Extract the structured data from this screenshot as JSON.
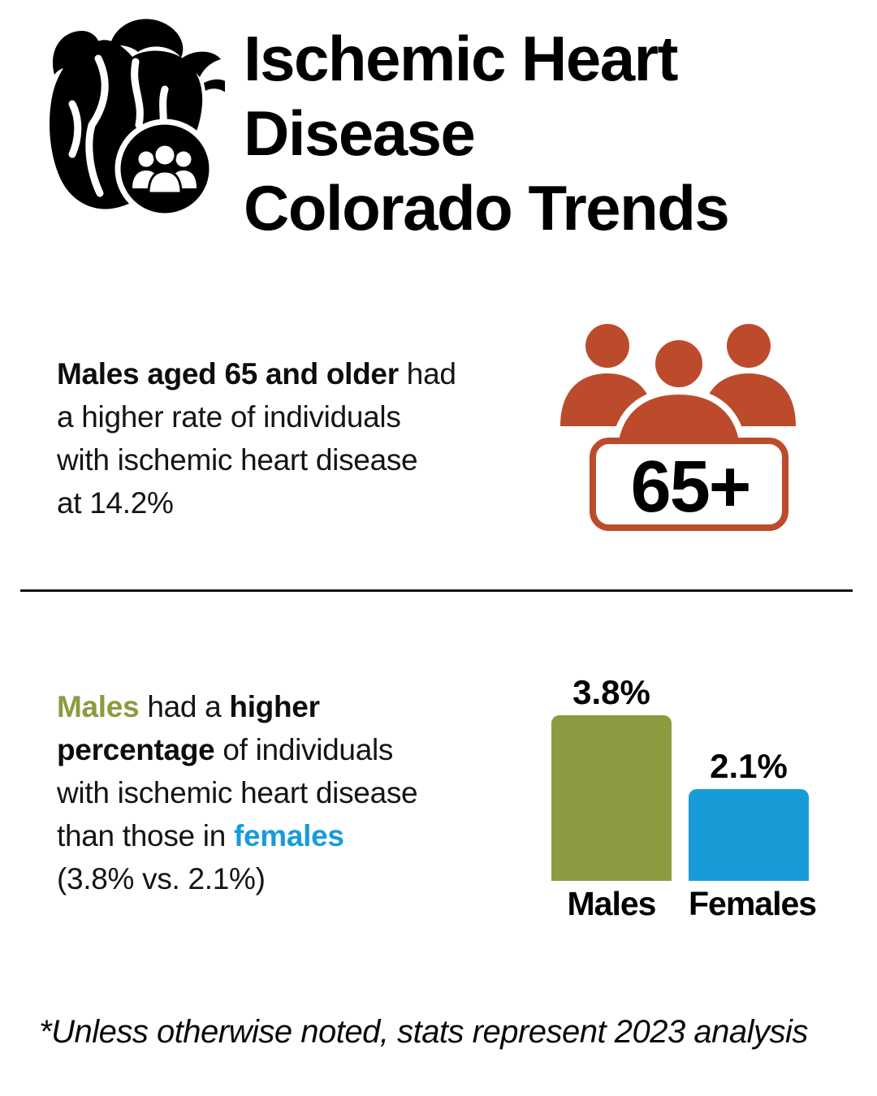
{
  "colors": {
    "male_green": "#8B9B40",
    "female_blue": "#189CD8",
    "terracotta": "#BC4B2C",
    "title_black": "#000000"
  },
  "header": {
    "icon": "anatomical-heart-with-people-icon",
    "title_lines": [
      "Ischemic Heart",
      "Disease",
      "Colorado Trends"
    ]
  },
  "section_65": {
    "icon": "seniors-group-icon",
    "badge_label": "65+",
    "rate": "14.2%",
    "lines": [
      [
        {
          "t": "Males aged 65 and older",
          "s": "b"
        },
        {
          "t": " had",
          "s": "n"
        }
      ],
      [
        {
          "t": "a higher rate of individuals",
          "s": "n"
        }
      ],
      [
        {
          "t": "with ischemic heart disease",
          "s": "n"
        }
      ],
      [
        {
          "t": "at 14.2%",
          "s": "n"
        }
      ]
    ]
  },
  "section_gender": {
    "lines": [
      [
        {
          "t": "Males",
          "s": "g"
        },
        {
          "t": " had a ",
          "s": "n"
        },
        {
          "t": "higher",
          "s": "b"
        }
      ],
      [
        {
          "t": "percentage",
          "s": "b"
        },
        {
          "t": " of individuals",
          "s": "n"
        }
      ],
      [
        {
          "t": "with ischemic heart disease",
          "s": "n"
        }
      ],
      [
        {
          "t": "than those in ",
          "s": "n"
        },
        {
          "t": "females",
          "s": "bl"
        }
      ],
      [
        {
          "t": "(3.8% vs. 2.1%)",
          "s": "n"
        }
      ]
    ]
  },
  "chart_data": {
    "type": "bar",
    "categories": [
      "Males",
      "Females"
    ],
    "values": [
      3.8,
      2.1
    ],
    "value_labels": [
      "3.8%",
      "2.1%"
    ],
    "colors": [
      "#8B9B40",
      "#189CD8"
    ],
    "title": "",
    "xlabel": "",
    "ylabel": "",
    "ylim": [
      0,
      3.8
    ],
    "grid": false,
    "legend": "none"
  },
  "footnote": {
    "text": "*Unless otherwise noted, stats represent 2023 analysis"
  }
}
